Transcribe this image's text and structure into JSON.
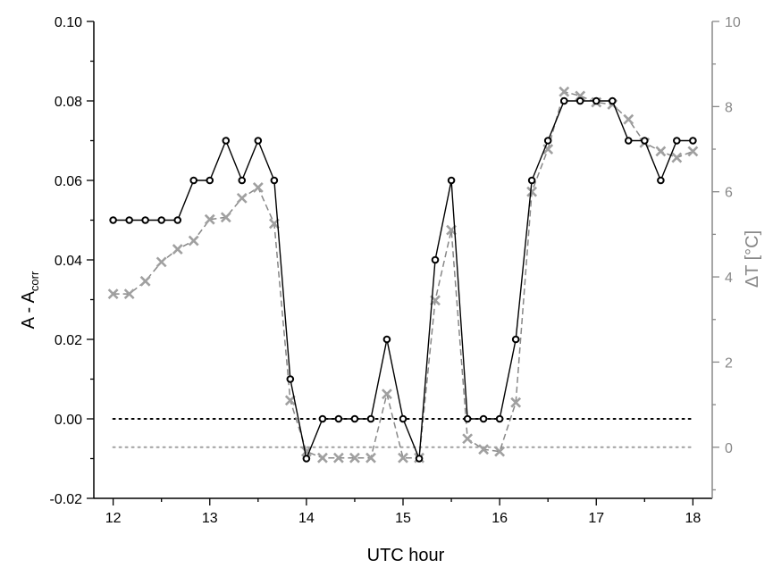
{
  "chart_data": {
    "type": "line",
    "title": "",
    "xlabel": "UTC hour",
    "ylabel_left": {
      "main": "A - A",
      "subscript": "corr"
    },
    "ylabel_right": "ΔT [°C]",
    "xlim": [
      11.8,
      18.2
    ],
    "ylim_left": [
      -0.02,
      0.1
    ],
    "ylim_right": [
      -1.2,
      10
    ],
    "x_ticks": [
      "12",
      "13",
      "14",
      "15",
      "16",
      "17",
      "18"
    ],
    "y_left_ticks": [
      "-0.02",
      "0.00",
      "0.02",
      "0.04",
      "0.06",
      "0.08",
      "0.10"
    ],
    "y_right_ticks": [
      "0",
      "2",
      "4",
      "6",
      "8",
      "10"
    ],
    "grid": false,
    "legend": "none",
    "colors": {
      "left_axis": "#000000",
      "right_axis": "#888888",
      "series_a": "#000000",
      "series_dt": "#a0a0a0"
    },
    "series": [
      {
        "axis": "left",
        "style": "solid line, open circle markers",
        "x": [
          12.0,
          12.167,
          12.333,
          12.5,
          12.667,
          12.833,
          13.0,
          13.167,
          13.333,
          13.5,
          13.667,
          13.833,
          14.0,
          14.167,
          14.333,
          14.5,
          14.667,
          14.833,
          15.0,
          15.167,
          15.333,
          15.5,
          15.667,
          15.833,
          16.0,
          16.167,
          16.333,
          16.5,
          16.667,
          16.833,
          17.0,
          17.167,
          17.333,
          17.5,
          17.667,
          17.833,
          18.0
        ],
        "y": [
          0.05,
          0.05,
          0.05,
          0.05,
          0.05,
          0.06,
          0.06,
          0.07,
          0.06,
          0.07,
          0.06,
          0.01,
          -0.01,
          0.0,
          0.0,
          0.0,
          0.0,
          0.02,
          0.0,
          -0.01,
          0.04,
          0.06,
          0.0,
          0.0,
          0.0,
          0.02,
          0.06,
          0.07,
          0.08,
          0.08,
          0.08,
          0.08,
          0.07,
          0.07,
          0.06,
          0.07,
          0.07
        ]
      },
      {
        "axis": "right",
        "style": "dashed line, x markers",
        "x": [
          12.0,
          12.167,
          12.333,
          12.5,
          12.667,
          12.833,
          13.0,
          13.167,
          13.333,
          13.5,
          13.667,
          13.833,
          14.0,
          14.167,
          14.333,
          14.5,
          14.667,
          14.833,
          15.0,
          15.167,
          15.333,
          15.5,
          15.667,
          15.833,
          16.0,
          16.167,
          16.333,
          16.5,
          16.667,
          16.833,
          17.0,
          17.167,
          17.333,
          17.5,
          17.667,
          17.833,
          18.0
        ],
        "y": [
          3.6,
          3.6,
          3.9,
          4.35,
          4.65,
          4.85,
          5.35,
          5.4,
          5.85,
          6.1,
          5.25,
          1.1,
          -0.1,
          -0.25,
          -0.25,
          -0.25,
          -0.25,
          1.25,
          -0.25,
          -0.25,
          3.45,
          5.1,
          0.2,
          -0.05,
          -0.1,
          1.05,
          6.0,
          7.0,
          8.35,
          8.25,
          8.1,
          8.05,
          7.7,
          7.15,
          6.95,
          6.8,
          6.95
        ]
      }
    ],
    "reference_lines": [
      {
        "axis": "left",
        "value": 0.0,
        "style": "dotted",
        "color": "#000000"
      },
      {
        "axis": "right",
        "value": 0.0,
        "style": "dotted",
        "color": "#a0a0a0"
      }
    ]
  }
}
